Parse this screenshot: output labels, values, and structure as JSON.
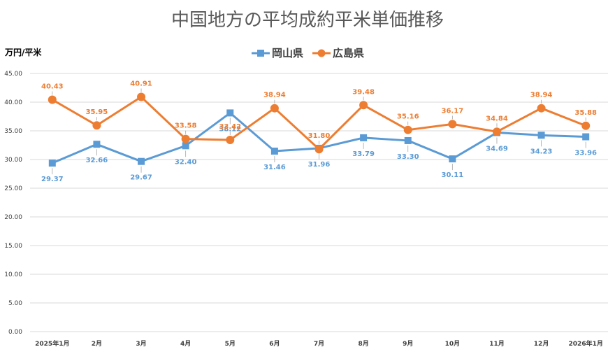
{
  "chart_data": {
    "type": "line",
    "title": "中国地方の平均成約平米単価推移",
    "ylabel": "万円/平米",
    "xlabel": "",
    "ylim": [
      0,
      45
    ],
    "ytick_labels": [
      "0.00",
      "5.00",
      "10.00",
      "15.00",
      "20.00",
      "25.00",
      "30.00",
      "35.00",
      "40.00",
      "45.00"
    ],
    "categories": [
      "2025年1月",
      "2月",
      "3月",
      "4月",
      "5月",
      "6月",
      "7月",
      "8月",
      "9月",
      "10月",
      "11月",
      "12月",
      "2026年1月"
    ],
    "grid": true,
    "legend_position": "top",
    "series": [
      {
        "name": "岡山県",
        "color": "#5b9bd5",
        "marker": "square",
        "values": [
          29.37,
          32.66,
          29.67,
          32.4,
          38.12,
          31.46,
          31.96,
          33.79,
          33.3,
          30.11,
          34.69,
          34.23,
          33.96
        ],
        "labels": [
          "29.37",
          "32.66",
          "29.67",
          "32.40",
          "38.12",
          "31.46",
          "31.96",
          "33.79",
          "33.30",
          "30.11",
          "34.69",
          "34.23",
          "33.96"
        ]
      },
      {
        "name": "広島県",
        "color": "#ed7d31",
        "marker": "circle",
        "values": [
          40.43,
          35.95,
          40.91,
          33.58,
          33.42,
          38.94,
          31.8,
          39.48,
          35.16,
          36.17,
          34.84,
          38.94,
          35.88
        ],
        "labels": [
          "40.43",
          "35.95",
          "40.91",
          "33.58",
          "33.42",
          "38.94",
          "31.80",
          "39.48",
          "35.16",
          "36.17",
          "34.84",
          "38.94",
          "35.88"
        ]
      }
    ]
  }
}
